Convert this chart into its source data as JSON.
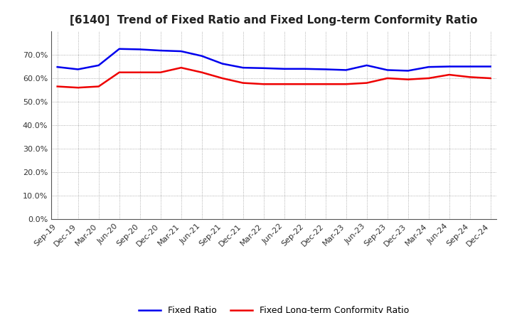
{
  "title": "[6140]  Trend of Fixed Ratio and Fixed Long-term Conformity Ratio",
  "x_labels": [
    "Sep-19",
    "Dec-19",
    "Mar-20",
    "Jun-20",
    "Sep-20",
    "Dec-20",
    "Mar-21",
    "Jun-21",
    "Sep-21",
    "Dec-21",
    "Mar-22",
    "Jun-22",
    "Sep-22",
    "Dec-22",
    "Mar-23",
    "Jun-23",
    "Sep-23",
    "Dec-23",
    "Mar-24",
    "Jun-24",
    "Sep-24",
    "Dec-24"
  ],
  "fixed_ratio": [
    64.8,
    63.8,
    65.5,
    72.5,
    72.3,
    71.8,
    71.5,
    69.5,
    66.2,
    64.5,
    64.3,
    64.0,
    64.0,
    63.8,
    63.5,
    65.5,
    63.5,
    63.2,
    64.8,
    65.0,
    65.0,
    65.0
  ],
  "fixed_lt_ratio": [
    56.5,
    56.0,
    56.5,
    62.5,
    62.5,
    62.5,
    64.5,
    62.5,
    60.0,
    58.0,
    57.5,
    57.5,
    57.5,
    57.5,
    57.5,
    58.0,
    60.0,
    59.5,
    60.0,
    61.5,
    60.5,
    60.0
  ],
  "fixed_ratio_color": "#0000ee",
  "fixed_lt_ratio_color": "#ee0000",
  "ylim": [
    0,
    80
  ],
  "yticks": [
    0,
    10,
    20,
    30,
    40,
    50,
    60,
    70
  ],
  "ytick_labels": [
    "0.0%",
    "10.0%",
    "20.0%",
    "30.0%",
    "40.0%",
    "50.0%",
    "60.0%",
    "70.0%"
  ],
  "background_color": "#ffffff",
  "plot_bg_color": "#ffffff",
  "grid_color": "#999999",
  "legend_fixed_ratio": "Fixed Ratio",
  "legend_fixed_lt_ratio": "Fixed Long-term Conformity Ratio",
  "title_fontsize": 11,
  "axis_fontsize": 8,
  "legend_fontsize": 9,
  "line_width": 1.8
}
